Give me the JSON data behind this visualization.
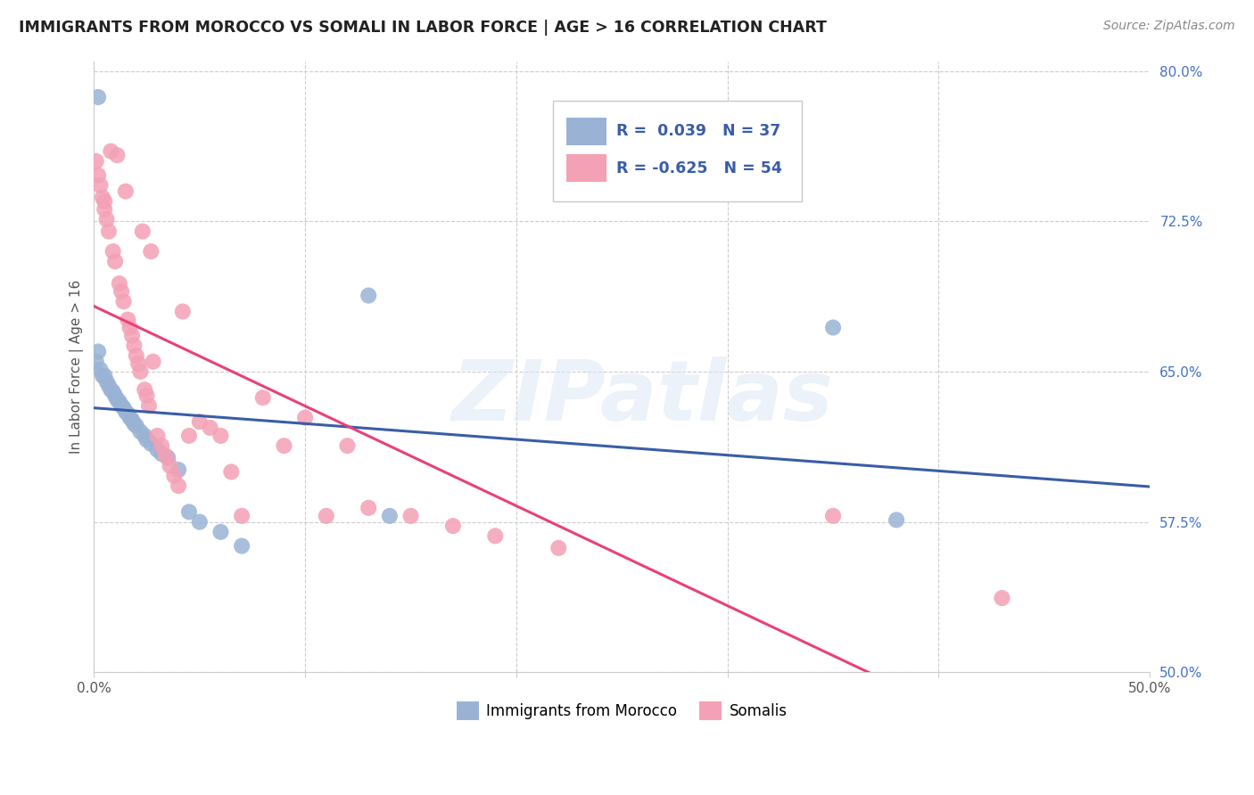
{
  "title": "IMMIGRANTS FROM MOROCCO VS SOMALI IN LABOR FORCE | AGE > 16 CORRELATION CHART",
  "source": "Source: ZipAtlas.com",
  "ylabel": "In Labor Force | Age > 16",
  "xlim": [
    0.0,
    0.5
  ],
  "ylim": [
    0.5,
    0.805
  ],
  "x_tick_positions": [
    0.0,
    0.1,
    0.2,
    0.3,
    0.4,
    0.5
  ],
  "x_tick_labels": [
    "0.0%",
    "",
    "",
    "",
    "",
    "50.0%"
  ],
  "y_ticks_right": [
    0.5,
    0.575,
    0.65,
    0.725,
    0.8
  ],
  "y_tick_labels_right": [
    "50.0%",
    "57.5%",
    "65.0%",
    "72.5%",
    "80.0%"
  ],
  "morocco_color": "#9ab3d5",
  "somali_color": "#f4a0b5",
  "morocco_line_color": "#3a5da8",
  "somali_line_color": "#e8417a",
  "morocco_R": 0.039,
  "morocco_N": 37,
  "somali_R": -0.625,
  "somali_N": 54,
  "legend_label_morocco": "Immigrants from Morocco",
  "legend_label_somali": "Somalis",
  "watermark": "ZIPatlas",
  "legend_text_color": "#3a5da8",
  "morocco_x": [
    0.001,
    0.002,
    0.003,
    0.004,
    0.005,
    0.006,
    0.007,
    0.008,
    0.009,
    0.01,
    0.011,
    0.012,
    0.013,
    0.014,
    0.015,
    0.016,
    0.017,
    0.018,
    0.019,
    0.02,
    0.022,
    0.024,
    0.025,
    0.027,
    0.03,
    0.032,
    0.035,
    0.04,
    0.045,
    0.05,
    0.06,
    0.07,
    0.002,
    0.13,
    0.14,
    0.35,
    0.38
  ],
  "morocco_y": [
    0.655,
    0.787,
    0.651,
    0.648,
    0.648,
    0.645,
    0.643,
    0.641,
    0.64,
    0.638,
    0.636,
    0.635,
    0.633,
    0.632,
    0.63,
    0.629,
    0.627,
    0.626,
    0.624,
    0.623,
    0.62,
    0.618,
    0.616,
    0.614,
    0.611,
    0.609,
    0.607,
    0.601,
    0.58,
    0.575,
    0.57,
    0.563,
    0.66,
    0.688,
    0.578,
    0.672,
    0.576
  ],
  "somali_x": [
    0.001,
    0.002,
    0.003,
    0.004,
    0.005,
    0.006,
    0.007,
    0.008,
    0.009,
    0.01,
    0.011,
    0.012,
    0.013,
    0.014,
    0.015,
    0.016,
    0.017,
    0.018,
    0.019,
    0.02,
    0.021,
    0.022,
    0.023,
    0.024,
    0.025,
    0.026,
    0.027,
    0.028,
    0.03,
    0.032,
    0.034,
    0.036,
    0.038,
    0.04,
    0.042,
    0.045,
    0.05,
    0.055,
    0.06,
    0.065,
    0.07,
    0.08,
    0.09,
    0.1,
    0.11,
    0.12,
    0.13,
    0.15,
    0.17,
    0.19,
    0.22,
    0.35,
    0.43,
    0.005
  ],
  "somali_y": [
    0.755,
    0.748,
    0.743,
    0.737,
    0.731,
    0.726,
    0.72,
    0.76,
    0.71,
    0.705,
    0.758,
    0.694,
    0.69,
    0.685,
    0.74,
    0.676,
    0.672,
    0.668,
    0.663,
    0.658,
    0.654,
    0.65,
    0.72,
    0.641,
    0.638,
    0.633,
    0.71,
    0.655,
    0.618,
    0.613,
    0.608,
    0.603,
    0.598,
    0.593,
    0.68,
    0.618,
    0.625,
    0.622,
    0.618,
    0.6,
    0.578,
    0.637,
    0.613,
    0.627,
    0.578,
    0.613,
    0.582,
    0.578,
    0.573,
    0.568,
    0.562,
    0.578,
    0.537,
    0.735
  ]
}
